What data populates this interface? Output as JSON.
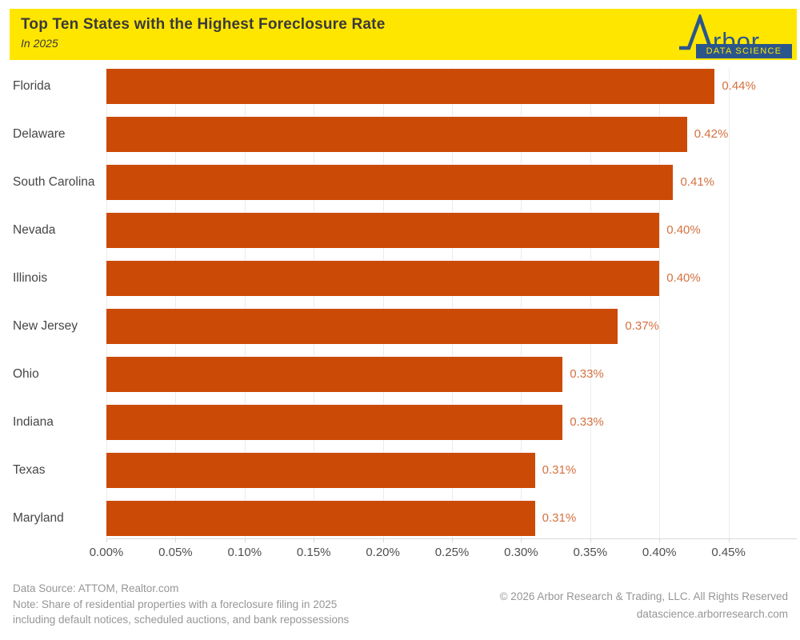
{
  "header": {
    "title": "Top Ten States with the Highest Foreclosure Rate",
    "subtitle": "In 2025",
    "band_color": "#FFE600",
    "text_color": "#3A3A3A"
  },
  "logo": {
    "brand": "Arbor",
    "brand_visible_text": "rbor",
    "tagline": "DATA SCIENCE",
    "color": "#2B568C"
  },
  "chart_data": {
    "type": "bar",
    "orientation": "horizontal",
    "title": "Top Ten States with the Highest Foreclosure Rate",
    "subtitle": "In 2025",
    "categories": [
      "Florida",
      "Delaware",
      "South Carolina",
      "Nevada",
      "Illinois",
      "New Jersey",
      "Ohio",
      "Indiana",
      "Texas",
      "Maryland"
    ],
    "values": [
      0.44,
      0.42,
      0.41,
      0.4,
      0.4,
      0.37,
      0.33,
      0.33,
      0.31,
      0.31
    ],
    "value_labels": [
      "0.44%",
      "0.42%",
      "0.41%",
      "0.40%",
      "0.40%",
      "0.37%",
      "0.33%",
      "0.33%",
      "0.31%",
      "0.31%"
    ],
    "x_ticks": [
      "0.00%",
      "0.05%",
      "0.10%",
      "0.15%",
      "0.20%",
      "0.25%",
      "0.30%",
      "0.35%",
      "0.40%",
      "0.45%"
    ],
    "x_tick_values": [
      0,
      0.05,
      0.1,
      0.15,
      0.2,
      0.25,
      0.3,
      0.35,
      0.4,
      0.45
    ],
    "xlim": [
      0,
      0.45
    ],
    "xlabel": "",
    "ylabel": "",
    "grid": true,
    "legend": "none",
    "bar_color": "#CB4A05",
    "value_label_color": "#D4713F"
  },
  "footer": {
    "source": "Data Source: ATTOM, Realtor.com",
    "note_line1": "Note: Share of residential properties with a foreclosure filing in 2025",
    "note_line2": "including default notices, scheduled auctions, and bank repossessions",
    "copyright": "© 2026 Arbor Research & Trading, LLC. All Rights Reserved",
    "website": "datascience.arborresearch.com"
  }
}
